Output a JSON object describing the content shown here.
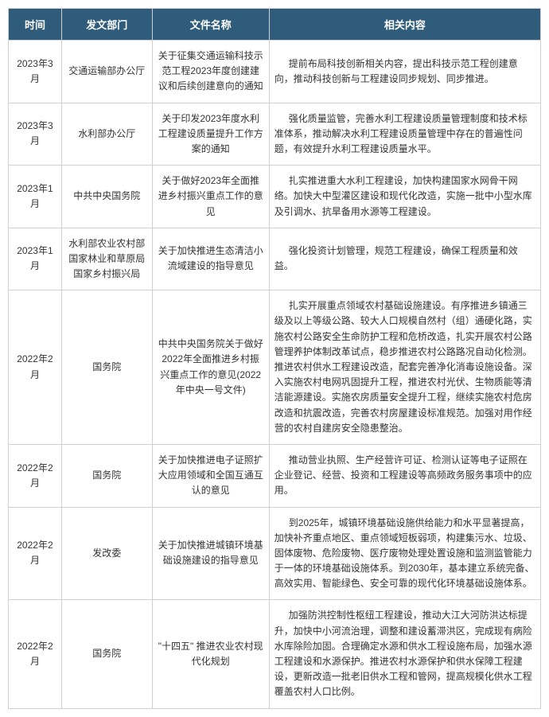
{
  "table": {
    "headers": {
      "time": "时间",
      "department": "发文部门",
      "fileName": "文件名称",
      "content": "相关内容"
    },
    "rows": [
      {
        "time": "2023年3月",
        "department": "交通运输部办公厅",
        "fileName": "关于征集交通运输科技示范工程2023年度创建建议和后续创建意向的通知",
        "content": "提前布局科技创新相关内容，提出科技示范工程创建意向，推动科技创新与工程建设同步规划、同步推进。"
      },
      {
        "time": "2023年3月",
        "department": "水利部办公厅",
        "fileName": "关于印发2023年度水利工程建设质量提升工作方案的通知",
        "content": "强化质量监管，完善水利工程建设质量管理制度和技术标准体系，推动解决水利工程建设质量管理中存在的普遍性问题，有效提升水利工程建设质量水平。"
      },
      {
        "time": "2023年1月",
        "department": "中共中央国务院",
        "fileName": "关于做好2023年全面推进乡村振兴重点工作的意见",
        "content": "扎实推进重大水利工程建设，加快构建国家水网骨干网络。加快大中型灌区建设和现代化改造，实施一批中小型水库及引调水、抗旱备用水源等工程建设。"
      },
      {
        "time": "2023年1月",
        "department": "水利部农业农村部国家林业和草原局国家乡村振兴局",
        "fileName": "关于加快推进生态清洁小流域建设的指导意见",
        "content": "强化投资计划管理，规范工程建设，确保工程质量和效益。"
      },
      {
        "time": "2022年2月",
        "department": "国务院",
        "fileName": "中共中央国务院关于做好2022年全面推进乡村振兴重点工作的意见(2022年中央一号文件)",
        "content": "扎实开展重点领域农村基础设施建设。有序推进乡镇通三级及以上等级公路、较大人口规模自然村（组）通硬化路，实施农村公路安全生命防护工程和危桥改造，扎实开展农村公路管理养护体制改革试点，稳步推进农村公路路况自动化检测。推进农村供水工程建设改造，配套完善净化消毒设施设备。深入实施农村电网巩固提升工程，推进农村光伏、生物质能等清洁能源建设。实施农房质量安全提升工程，继续实施农村危房改造和抗震改造，完善农村房屋建设标准规范。加强对用作经营的农村自建房安全隐患整治。"
      },
      {
        "time": "2022年2月",
        "department": "国务院",
        "fileName": "关于加快推进电子证照扩大应用领域和全国互通互认的意见",
        "content": "推动营业执照、生产经营许可证、检测认证等电子证照在企业登记、经营、投资和工程建设等高频政务服务事项中的应用。"
      },
      {
        "time": "2022年2月",
        "department": "发改委",
        "fileName": "关于加快推进城镇环境基础设施建设的指导意见",
        "content": "到2025年，城镇环境基础设施供给能力和水平显著提高，加快补齐重点地区、重点领域短板弱项，构建集污水、垃圾、固体废物、危险废物、医疗废物处理处置设施和监测监管能力于一体的环境基础设施体系。到2030年，基本建立系统完备、高效实用、智能绿色、安全可靠的现代化环境基础设施体系。"
      },
      {
        "time": "2022年2月",
        "department": "国务院",
        "fileName": "\"十四五\" 推进农业农村现代化规划",
        "content": "加强防洪控制性枢纽工程建设，推动大江大河防洪达标提升，加快中小河流治理，调整和建设蓄滞洪区，完成现有病险水库除险加固。合理确定水源和供水工程设施布局，加强水源工程建设和水源保护。推进农村水源保护和供水保障工程建设，更新改造一批老旧供水工程和管网，提高规模化供水工程覆盖农村人口比例。"
      }
    ],
    "colors": {
      "headerBg": "#2e5c7a",
      "headerText": "#ffffff",
      "border": "#d0d0d0",
      "cellText": "#333333"
    }
  }
}
